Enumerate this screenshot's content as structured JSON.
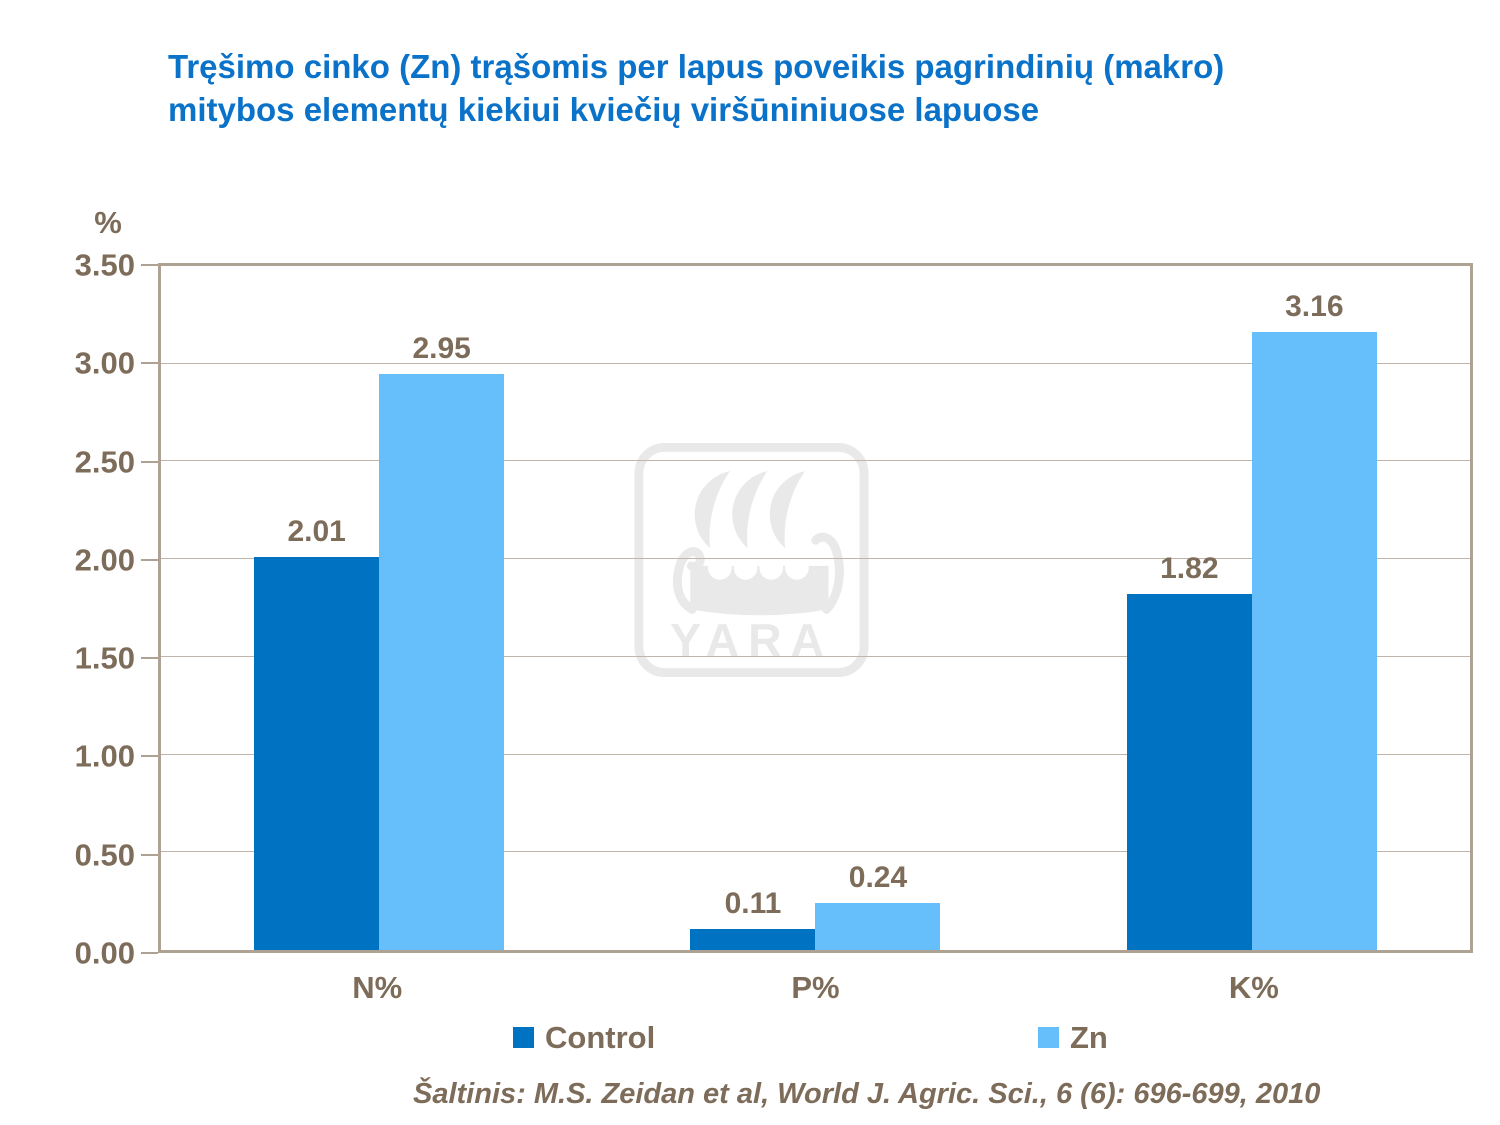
{
  "title": "Tręšimo cinko (Zn) trąšomis per lapus poveikis pagrindinių (makro) mitybos elementų kiekiui kviečių viršūniniuose lapuose",
  "y_axis": {
    "unit": "%"
  },
  "source": "Šaltinis: M.S. Zeidan et al, World J. Agric. Sci., 6 (6): 696-699, 2010",
  "watermark": {
    "text": "YARA"
  },
  "colors": {
    "title_text": "#0a72c8",
    "axis_text": "#7d6c59",
    "gridline": "#c0b5a8",
    "plot_border": "#aea294",
    "control_series": "#0072c2",
    "zn_series": "#66bffb",
    "watermark": "#e9e9e9"
  },
  "chart_data": {
    "type": "bar",
    "categories": [
      "N%",
      "P%",
      "K%"
    ],
    "series": [
      {
        "name": "Control",
        "color": "#0072c2",
        "values": [
          2.01,
          0.11,
          1.82
        ]
      },
      {
        "name": "Zn",
        "color": "#66bffb",
        "values": [
          2.95,
          0.24,
          3.16
        ]
      }
    ],
    "title": "Tręšimo cinko (Zn) trąšomis per lapus poveikis pagrindinių (makro) mitybos elementų kiekiui kviečių viršūniniuose lapuose",
    "xlabel": "",
    "ylabel": "%",
    "ylim": [
      0,
      3.5
    ],
    "ytick_step": 0.5,
    "ytick_labels": [
      "0.00",
      "0.50",
      "1.00",
      "1.50",
      "2.00",
      "2.50",
      "3.00",
      "3.50"
    ],
    "grid": true,
    "legend_position": "bottom",
    "data_labels": true,
    "value_format_decimals": 2
  }
}
